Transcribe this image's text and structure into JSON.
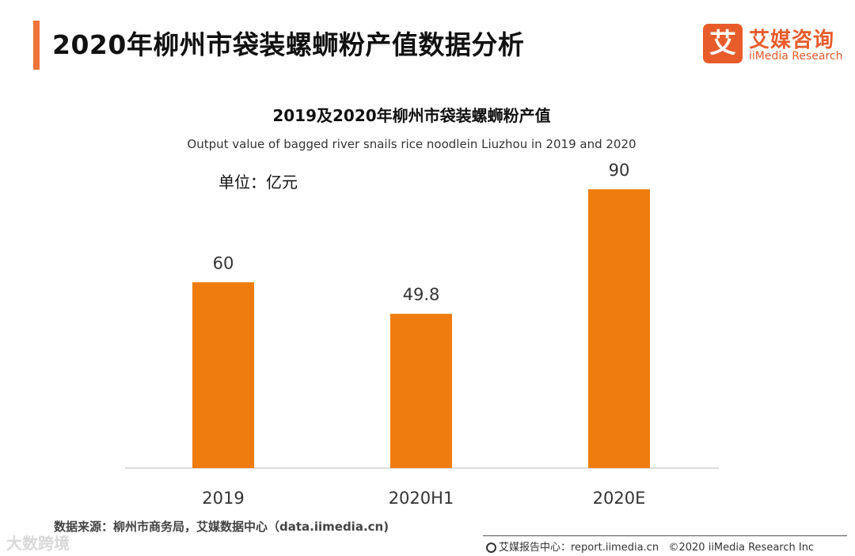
{
  "header": {
    "title": "2020年柳州市袋装螺蛳粉产值数据分析",
    "logo_mark": "艾",
    "logo_cn": "艾媒咨询",
    "logo_en": "iiMedia Research",
    "accent_color": "#f0743a"
  },
  "chart_data": {
    "type": "bar",
    "title": "2019及2020年柳州市袋装螺蛳粉产值",
    "subtitle": "Output value of bagged river snails rice noodlein Liuzhou in 2019 and 2020",
    "unit": "单位：亿元",
    "categories": [
      "2019",
      "2020H1",
      "2020E"
    ],
    "values": [
      60,
      49.8,
      90
    ],
    "value_labels": [
      "60",
      "49.8",
      "90"
    ],
    "ylim": [
      0,
      100
    ],
    "bar_color": "#ef7c0e",
    "xlabel": "",
    "ylabel": ""
  },
  "footer": {
    "source": "数据来源：柳州市商务局，艾媒数据中心（data.iimedia.cn)",
    "center": "艾媒报告中心：report.iimedia.cn",
    "copyright": "©2020  iiMedia Research  Inc",
    "watermark": "大数跨境"
  }
}
